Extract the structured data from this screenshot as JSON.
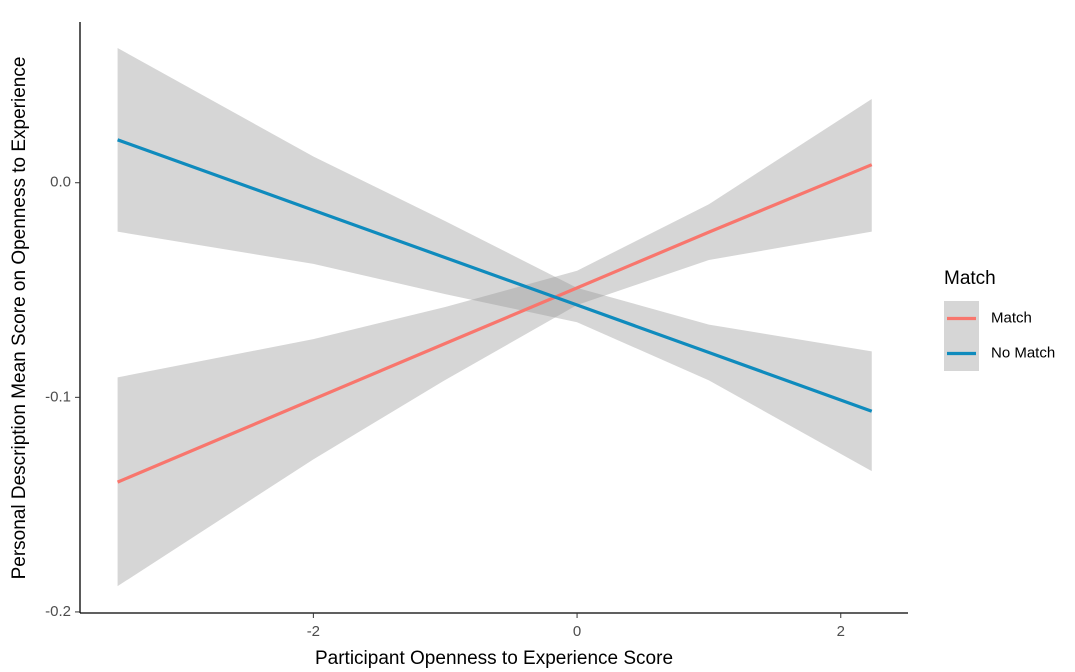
{
  "chart_data": {
    "type": "line",
    "x_label": "Participant Openness to Experience Score",
    "y_label": "Personal Description Mean Score on Openness to Experience",
    "x": [
      -3.485,
      -2,
      -1,
      0,
      1,
      2.235
    ],
    "series": [
      {
        "name": "Match",
        "color": "#f8766d",
        "values": [
          -0.1395,
          -0.1009,
          -0.0749,
          -0.049,
          -0.023,
          0.0084
        ],
        "lower": [
          -0.188,
          -0.1289,
          -0.0919,
          -0.057,
          -0.036,
          -0.0228
        ],
        "upper": [
          -0.0907,
          -0.0729,
          -0.0579,
          -0.041,
          -0.01,
          0.039
        ]
      },
      {
        "name": "No Match",
        "color": "#0f8bbd",
        "values": [
          0.02,
          -0.0128,
          -0.0349,
          -0.057,
          -0.0791,
          -0.1065
        ],
        "lower": [
          -0.0228,
          -0.0378,
          -0.0519,
          -0.065,
          -0.0921,
          -0.1344
        ],
        "upper": [
          0.0628,
          0.0122,
          -0.0179,
          -0.049,
          -0.0661,
          -0.0786
        ]
      }
    ],
    "ribbon_color": "#999999",
    "legend_title": "Match",
    "legend_position": "right",
    "xlim": [
      -3.77,
      2.51
    ],
    "ylim": [
      -0.2005,
      0.0749
    ],
    "xticks": [
      -2,
      0,
      2
    ],
    "yticks": [
      {
        "value": 0,
        "label": "0.0"
      },
      -0.1,
      -0.2
    ]
  }
}
